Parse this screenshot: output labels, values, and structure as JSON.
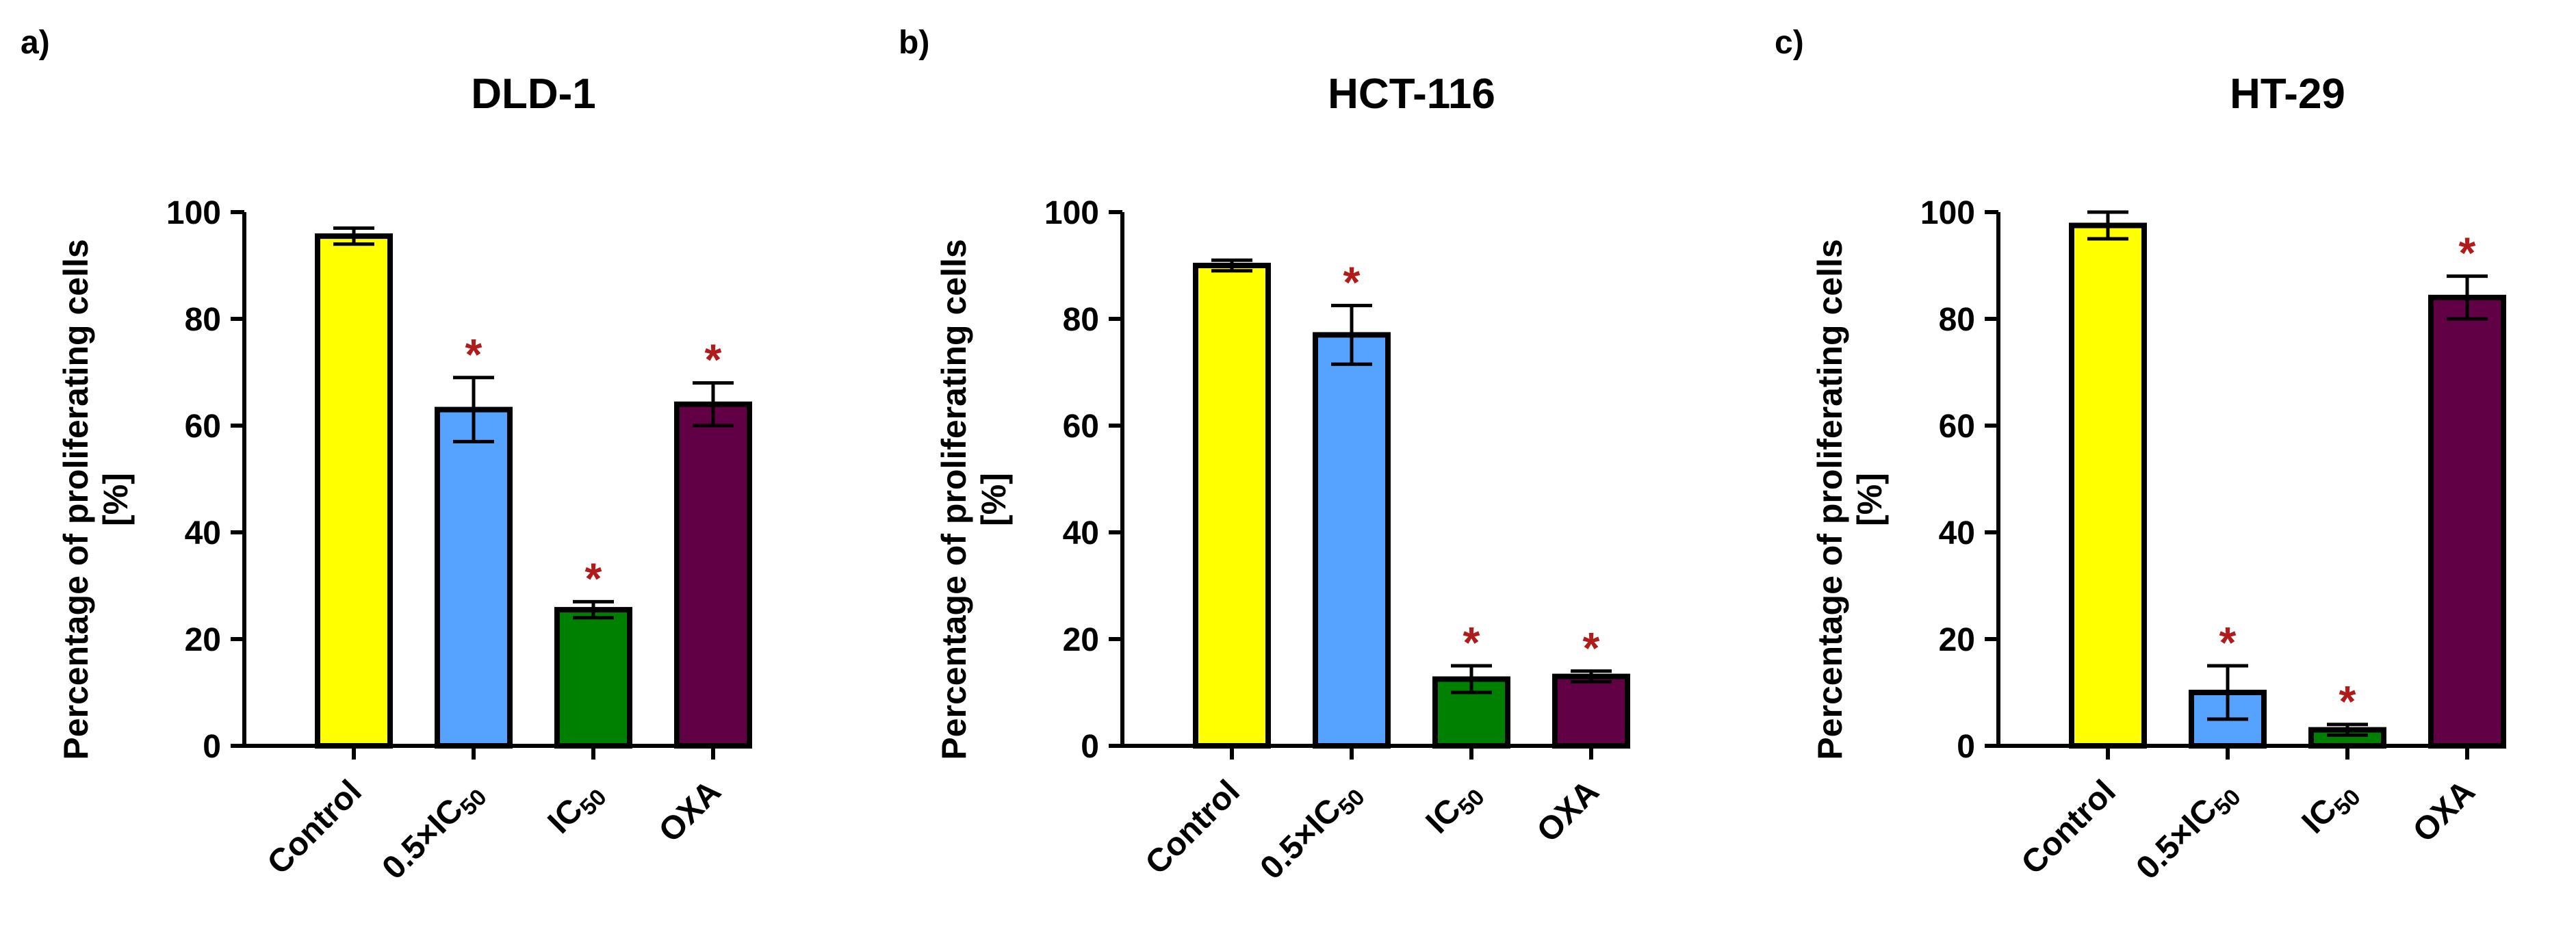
{
  "chart_data": [
    {
      "type": "bar",
      "panel_label": "a)",
      "title": "DLD-1",
      "ylabel_lines": [
        "Percentage of proliferating cells",
        "[%]"
      ],
      "categories": [
        {
          "text": "Control",
          "sub": ""
        },
        {
          "text": "0.5×IC",
          "sub": "50"
        },
        {
          "text": "IC",
          "sub": "50"
        },
        {
          "text": "OXA",
          "sub": ""
        }
      ],
      "values": [
        95.5,
        63,
        25.5,
        64
      ],
      "errors": [
        1.5,
        6,
        1.5,
        4
      ],
      "significant": [
        false,
        true,
        true,
        true
      ],
      "significance_marker": "*",
      "ylim": [
        0,
        100
      ],
      "yticks": [
        0,
        20,
        40,
        60,
        80,
        100
      ],
      "bar_colors": [
        "#ffff00",
        "#55a3ff",
        "#008000",
        "#620046"
      ],
      "marker_color": "#b01c1c"
    },
    {
      "type": "bar",
      "panel_label": "b)",
      "title": "HCT-116",
      "ylabel_lines": [
        "Percentage of proliferating cells",
        "[%]"
      ],
      "categories": [
        {
          "text": "Control",
          "sub": ""
        },
        {
          "text": "0.5×IC",
          "sub": "50"
        },
        {
          "text": "IC",
          "sub": "50"
        },
        {
          "text": "OXA",
          "sub": ""
        }
      ],
      "values": [
        90,
        77,
        12.5,
        13
      ],
      "errors": [
        1,
        5.5,
        2.5,
        1
      ],
      "significant": [
        false,
        true,
        true,
        true
      ],
      "significance_marker": "*",
      "ylim": [
        0,
        100
      ],
      "yticks": [
        0,
        20,
        40,
        60,
        80,
        100
      ],
      "bar_colors": [
        "#ffff00",
        "#55a3ff",
        "#008000",
        "#620046"
      ],
      "marker_color": "#b01c1c"
    },
    {
      "type": "bar",
      "panel_label": "c)",
      "title": "HT-29",
      "ylabel_lines": [
        "Percentage of proliferating cells",
        "[%]"
      ],
      "categories": [
        {
          "text": "Control",
          "sub": ""
        },
        {
          "text": "0.5×IC",
          "sub": "50"
        },
        {
          "text": "IC",
          "sub": "50"
        },
        {
          "text": "OXA",
          "sub": ""
        }
      ],
      "values": [
        97.5,
        10,
        3,
        84
      ],
      "errors": [
        2.5,
        5,
        1,
        4
      ],
      "significant": [
        false,
        true,
        true,
        true
      ],
      "significance_marker": "*",
      "ylim": [
        0,
        100
      ],
      "yticks": [
        0,
        20,
        40,
        60,
        80,
        100
      ],
      "bar_colors": [
        "#ffff00",
        "#55a3ff",
        "#008000",
        "#620046"
      ],
      "marker_color": "#b01c1c"
    }
  ]
}
